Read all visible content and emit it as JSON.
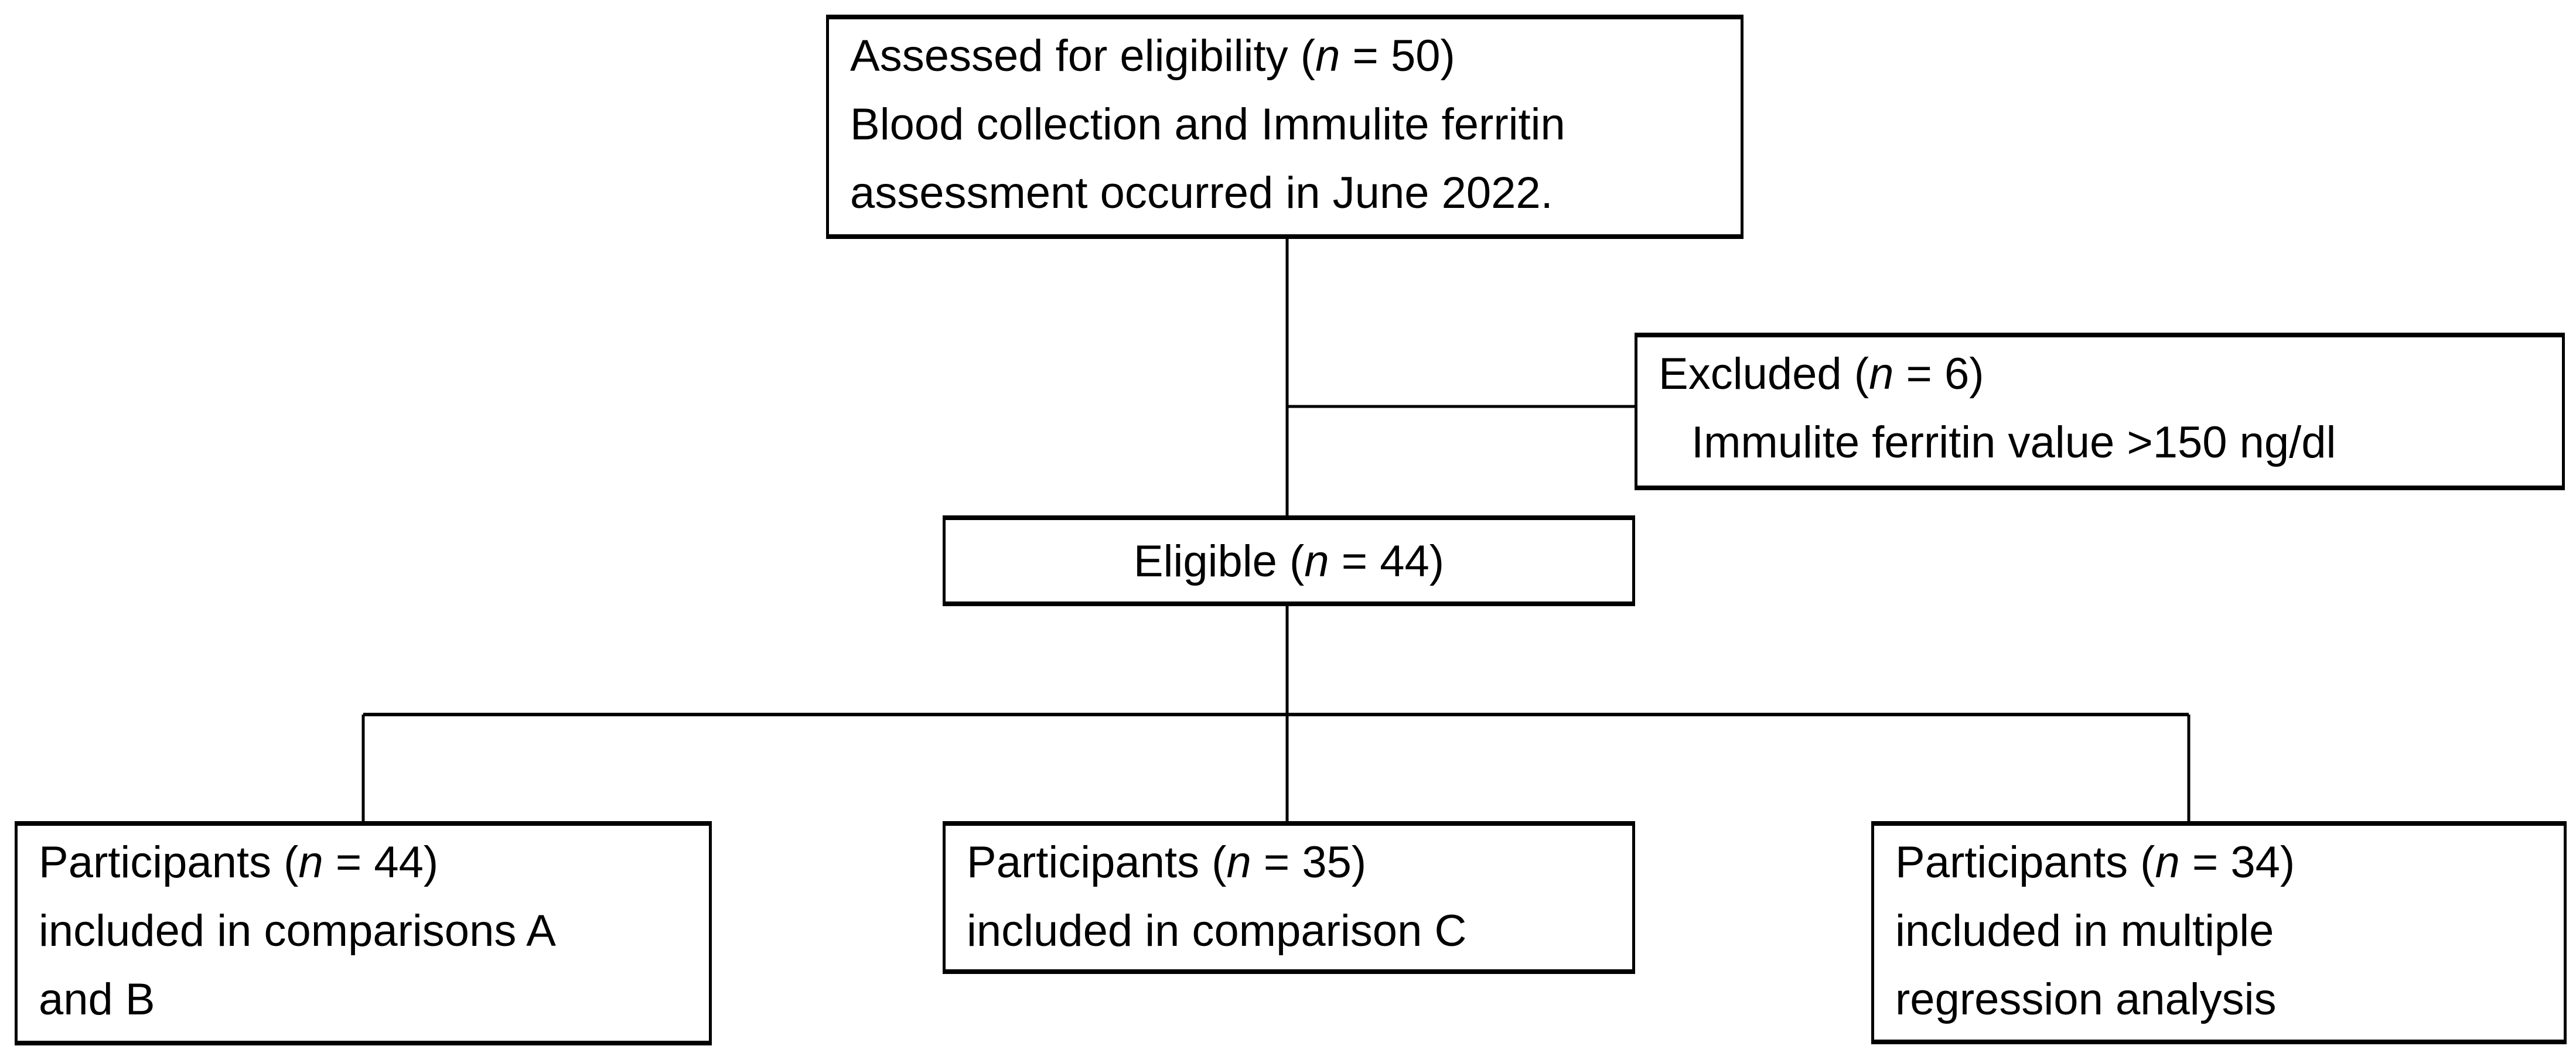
{
  "diagram": {
    "type": "participant-flowchart",
    "colors": {
      "background": "#ffffff",
      "border": "#000000",
      "text": "#000000",
      "connector": "#000000"
    },
    "boxes": {
      "assessed": {
        "lines": [
          "Assessed for eligibility (n = 50)",
          "Blood collection and Immulite ferritin",
          "assessment occurred in June 2022."
        ]
      },
      "excluded": {
        "lines": [
          "Excluded (n = 6)",
          "Immulite ferritin value >150 ng/dl"
        ]
      },
      "eligible": {
        "lines": [
          "Eligible (n = 44)"
        ]
      },
      "participants_ab": {
        "lines": [
          "Participants (n = 44)",
          "included in comparisons A",
          "and B"
        ]
      },
      "participants_c": {
        "lines": [
          "Participants (n = 35)",
          "included in comparison C"
        ]
      },
      "participants_regression": {
        "lines": [
          "Participants (n = 34)",
          "included in multiple",
          "regression analysis"
        ]
      }
    }
  }
}
